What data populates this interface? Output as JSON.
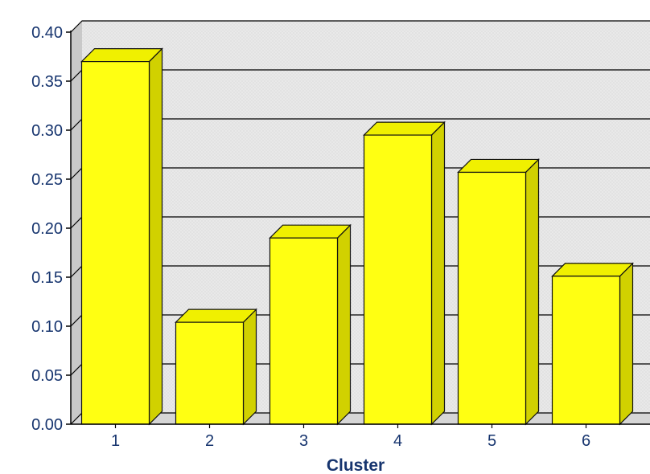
{
  "chart_data": {
    "type": "bar",
    "categories": [
      "1",
      "2",
      "3",
      "4",
      "5",
      "6"
    ],
    "values": [
      0.37,
      0.104,
      0.19,
      0.295,
      0.257,
      0.151
    ],
    "title": "",
    "xlabel": "Cluster",
    "ylabel": "",
    "ylim": [
      0,
      0.4
    ],
    "yticks": [
      "0.00",
      "0.05",
      "0.10",
      "0.15",
      "0.20",
      "0.25",
      "0.30",
      "0.35",
      "0.40"
    ],
    "grid": true,
    "legend": "none",
    "style": "3d",
    "colors": {
      "bar_front": "#ffff12",
      "bar_top": "#f0f000",
      "bar_side": "#d1d100",
      "bar_outline": "#111111",
      "wall": "#e8e8e8",
      "floor": "#d6d6d6",
      "gridline": "#000000",
      "text": "#16346e"
    }
  }
}
